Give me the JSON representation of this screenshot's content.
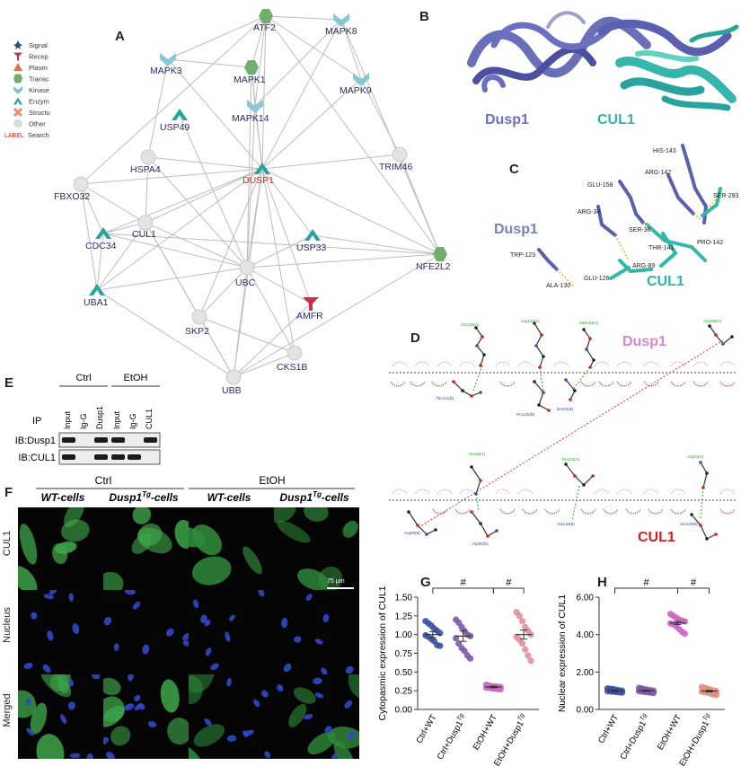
{
  "panelA": {
    "letter": "A",
    "legend": [
      {
        "label": "Signal",
        "color": "#234e7a",
        "icon": "star-icon"
      },
      {
        "label": "Recep",
        "color": "#c8304e",
        "icon": "receptor-icon"
      },
      {
        "label": "Plasm",
        "color": "#e07055",
        "icon": "triangle-icon"
      },
      {
        "label": "Transc",
        "color": "#6fae6f",
        "icon": "hexagon-icon"
      },
      {
        "label": "Kinase",
        "color": "#7fc0d0",
        "icon": "chevron-icon"
      },
      {
        "label": "Enzym",
        "color": "#2aa39e",
        "icon": "arch-icon"
      },
      {
        "label": "Structu",
        "color": "#e88c6c",
        "icon": "cross-icon"
      },
      {
        "label": "Other",
        "color": "#dcdcdc",
        "icon": "circle-icon"
      },
      {
        "label": "Search",
        "color": "#cc2222",
        "icon": "label-icon",
        "prefix": "LABEL"
      }
    ],
    "nodes": [
      {
        "id": "ATF2",
        "label": "ATF2",
        "type": "transc"
      },
      {
        "id": "MAPK8",
        "label": "MAPK8",
        "type": "kinase"
      },
      {
        "id": "MAPK3",
        "label": "MAPK3",
        "type": "kinase"
      },
      {
        "id": "MAPK1",
        "label": "MAPK1",
        "type": "transc"
      },
      {
        "id": "MAPK9",
        "label": "MAPK9",
        "type": "kinase"
      },
      {
        "id": "MAPK14",
        "label": "MAPK14",
        "type": "kinase"
      },
      {
        "id": "USP49",
        "label": "USP49",
        "type": "enzym"
      },
      {
        "id": "HSPA4",
        "label": "HSPA4",
        "type": "other"
      },
      {
        "id": "DUSP1",
        "label": "DUSP1",
        "type": "enzym",
        "highlight": true
      },
      {
        "id": "TRIM46",
        "label": "TRIM46",
        "type": "other"
      },
      {
        "id": "FBXO32",
        "label": "FBXO32",
        "type": "other"
      },
      {
        "id": "CUL1",
        "label": "CUL1",
        "type": "other"
      },
      {
        "id": "CDC34",
        "label": "CDC34",
        "type": "enzym"
      },
      {
        "id": "USP33",
        "label": "USP33",
        "type": "enzym"
      },
      {
        "id": "NFE2L2",
        "label": "NFE2L2",
        "type": "transc"
      },
      {
        "id": "UBC",
        "label": "UBC",
        "type": "other"
      },
      {
        "id": "UBA1",
        "label": "UBA1",
        "type": "enzym"
      },
      {
        "id": "AMFR",
        "label": "AMFR",
        "type": "recep"
      },
      {
        "id": "SKP2",
        "label": "SKP2",
        "type": "other"
      },
      {
        "id": "CKS1B",
        "label": "CKS1B",
        "type": "other"
      },
      {
        "id": "UBB",
        "label": "UBB",
        "type": "other"
      }
    ],
    "edges": [
      [
        "DUSP1",
        "ATF2"
      ],
      [
        "DUSP1",
        "MAPK8"
      ],
      [
        "DUSP1",
        "MAPK3"
      ],
      [
        "DUSP1",
        "MAPK1"
      ],
      [
        "DUSP1",
        "MAPK9"
      ],
      [
        "DUSP1",
        "MAPK14"
      ],
      [
        "DUSP1",
        "HSPA4"
      ],
      [
        "DUSP1",
        "TRIM46"
      ],
      [
        "DUSP1",
        "FBXO32"
      ],
      [
        "DUSP1",
        "CUL1"
      ],
      [
        "DUSP1",
        "CDC34"
      ],
      [
        "DUSP1",
        "UBC"
      ],
      [
        "DUSP1",
        "UBA1"
      ],
      [
        "DUSP1",
        "AMFR"
      ],
      [
        "DUSP1",
        "SKP2"
      ],
      [
        "DUSP1",
        "UBB"
      ],
      [
        "DUSP1",
        "CKS1B"
      ],
      [
        "DUSP1",
        "USP33"
      ],
      [
        "DUSP1",
        "NFE2L2"
      ],
      [
        "ATF2",
        "MAPK8"
      ],
      [
        "ATF2",
        "MAPK3"
      ],
      [
        "ATF2",
        "MAPK1"
      ],
      [
        "ATF2",
        "MAPK9"
      ],
      [
        "ATF2",
        "MAPK14"
      ],
      [
        "ATF2",
        "FBXO32"
      ],
      [
        "ATF2",
        "NFE2L2"
      ],
      [
        "MAPK8",
        "MAPK9"
      ],
      [
        "MAPK8",
        "NFE2L2"
      ],
      [
        "MAPK8",
        "MAPK14"
      ],
      [
        "MAPK3",
        "MAPK1"
      ],
      [
        "MAPK3",
        "HSPA4"
      ],
      [
        "MAPK1",
        "MAPK14"
      ],
      [
        "MAPK9",
        "TRIM46"
      ],
      [
        "HSPA4",
        "CUL1"
      ],
      [
        "FBXO32",
        "CUL1"
      ],
      [
        "FBXO32",
        "CDC34"
      ],
      [
        "FBXO32",
        "UBA1"
      ],
      [
        "CUL1",
        "CDC34"
      ],
      [
        "CUL1",
        "UBC"
      ],
      [
        "CUL1",
        "SKP2"
      ],
      [
        "CUL1",
        "UBA1"
      ],
      [
        "CUL1",
        "UBB"
      ],
      [
        "CDC34",
        "UBA1"
      ],
      [
        "CDC34",
        "UBC"
      ],
      [
        "CDC34",
        "NFE2L2"
      ],
      [
        "UBA1",
        "UBC"
      ],
      [
        "UBA1",
        "UBB"
      ],
      [
        "UBC",
        "USP33"
      ],
      [
        "UBC",
        "UBB"
      ],
      [
        "UBC",
        "AMFR"
      ],
      [
        "UBC",
        "SKP2"
      ],
      [
        "UBC",
        "CKS1B"
      ],
      [
        "UBC",
        "NFE2L2"
      ],
      [
        "USP33",
        "NFE2L2"
      ],
      [
        "AMFR",
        "UBB"
      ],
      [
        "SKP2",
        "CKS1B"
      ],
      [
        "SKP2",
        "UBB"
      ],
      [
        "UBB",
        "CKS1B"
      ],
      [
        "NFE2L2",
        "UBB"
      ],
      [
        "NFE2L2",
        "TRIM46"
      ],
      [
        "MAPK14",
        "UBC"
      ],
      [
        "USP49",
        "UBC"
      ],
      [
        "HSPA4",
        "UBC"
      ],
      [
        "MAPK1",
        "UBC"
      ]
    ]
  },
  "panelB": {
    "letter": "B",
    "label_left": "Dusp1",
    "label_right": "CUL1"
  },
  "panelC": {
    "letter": "C",
    "label_left": "Dusp1",
    "label_right": "CUL1",
    "residues": [
      "HIS-143",
      "ARG-142",
      "SER-293",
      "GLU-158",
      "ARG-34",
      "SER-36",
      "PRO-142",
      "THR-141",
      "TRP-123",
      "ARG-89",
      "GLU-126",
      "ALA-130"
    ]
  },
  "panelD": {
    "letter": "D",
    "top_label": "Dusp1",
    "bottom_label": "CUL1",
    "top_residues": [
      "Gln139(A)",
      "Arg142(A)",
      "Met143(A)",
      "Arg289(A)",
      "Thr141(B)",
      "Pro142(B)",
      "Ile293(B)"
    ],
    "bottom_residues": [
      "Ser36(A)",
      "Trp123(A)",
      "Arg34(A)",
      "Arg89(B)",
      "Ala130(B)",
      "Glu126(B)",
      "Asp90(B)"
    ]
  },
  "panelE": {
    "letter": "E",
    "group_ctrl": "Ctrl",
    "group_etoh": "EtOH",
    "ip_label": "IP",
    "lanes": [
      "Input",
      "Ig-G",
      "Dusp1",
      "Input",
      "Ig-G",
      "CUL1"
    ],
    "blots": [
      "IB:Dusp1",
      "IB:CUL1"
    ]
  },
  "panelF": {
    "letter": "F",
    "group_ctrl": "Ctrl",
    "group_etoh": "EtOH",
    "cols": [
      "WT-cells",
      "Dusp1Tg-cells",
      "WT-cells",
      "Dusp1Tg-cells"
    ],
    "col_base": [
      "WT-cells",
      "Dusp1",
      "WT-cells",
      "Dusp1"
    ],
    "col_sup": [
      "",
      "Tg",
      "",
      "Tg"
    ],
    "col_tail": [
      "",
      "-cells",
      "",
      "-cells"
    ],
    "rows": [
      "CUL1",
      "Nucleus",
      "Merged"
    ],
    "scale_bar": "75 μm"
  },
  "panelG": {
    "letter": "G",
    "chart_data": {
      "type": "scatter",
      "ylabel": "Cytopasmic expression of CUL1",
      "ylim": [
        0,
        1.5
      ],
      "yticks": [
        "0.00",
        "0.25",
        "0.50",
        "0.75",
        "1.00",
        "1.25",
        "1.50"
      ],
      "categories": [
        "Ctrl+WT",
        "Ctrl+Dusp1Tg",
        "EtOH+WT",
        "EtOH+Dusp1Tg"
      ],
      "cat_base": [
        "Ctrl+WT",
        "Ctrl+Dusp1",
        "EtOH+WT",
        "EtOH+Dusp1"
      ],
      "cat_sup": [
        "",
        "Tg",
        "",
        "Tg"
      ],
      "colors": [
        "#3d4fa0",
        "#7b5aa6",
        "#c868c0",
        "#e08fa0"
      ],
      "means": [
        1.0,
        0.98,
        0.3,
        1.0
      ],
      "sems": [
        0.04,
        0.07,
        0.01,
        0.06
      ],
      "series": [
        {
          "values": [
            1.18,
            1.15,
            1.12,
            1.08,
            1.05,
            1.02,
            0.99,
            0.97,
            0.94,
            0.91,
            0.86,
            0.85
          ]
        },
        {
          "values": [
            1.2,
            1.16,
            1.1,
            1.05,
            1.0,
            0.98,
            0.95,
            0.88,
            0.82,
            0.78,
            0.72,
            0.68
          ]
        },
        {
          "values": [
            0.33,
            0.32,
            0.31,
            0.31,
            0.3,
            0.3,
            0.29,
            0.29,
            0.28,
            0.28,
            0.27,
            0.27
          ]
        },
        {
          "values": [
            1.3,
            1.25,
            1.18,
            1.1,
            1.05,
            1.0,
            0.97,
            0.93,
            0.88,
            0.8,
            0.72,
            0.65
          ]
        }
      ],
      "sig": [
        "#",
        "#"
      ]
    }
  },
  "panelH": {
    "letter": "H",
    "chart_data": {
      "type": "scatter",
      "ylabel": "Nuclear expression of CUL1",
      "ylim": [
        0,
        6
      ],
      "yticks": [
        "0.00",
        "2.00",
        "4.00",
        "6.00"
      ],
      "categories": [
        "Ctrl+WT",
        "Ctrl+Dusp1Tg",
        "EtOH+WT",
        "EtOH+Dusp1Tg"
      ],
      "cat_base": [
        "Ctrl+WT",
        "Ctrl+Dusp1",
        "EtOH+WT",
        "EtOH+Dusp1"
      ],
      "cat_sup": [
        "",
        "Tg",
        "",
        "Tg"
      ],
      "colors": [
        "#3d4fa0",
        "#7b5aa6",
        "#c868c0",
        "#e08f80"
      ],
      "means": [
        1.0,
        1.0,
        4.62,
        0.98
      ],
      "sems": [
        0.03,
        0.03,
        0.08,
        0.04
      ],
      "series": [
        {
          "values": [
            1.12,
            1.1,
            1.08,
            1.05,
            1.02,
            1.0,
            0.98,
            0.96,
            0.95,
            0.93,
            0.92,
            0.9
          ]
        },
        {
          "values": [
            1.15,
            1.12,
            1.08,
            1.05,
            1.02,
            1.0,
            0.98,
            0.96,
            0.94,
            0.92,
            0.9,
            0.88
          ]
        },
        {
          "values": [
            5.1,
            5.0,
            4.9,
            4.8,
            4.75,
            4.7,
            4.6,
            4.55,
            4.45,
            4.3,
            4.15,
            4.05
          ]
        },
        {
          "values": [
            1.2,
            1.15,
            1.1,
            1.05,
            1.0,
            0.98,
            0.95,
            0.92,
            0.9,
            0.85,
            0.8,
            0.78
          ]
        }
      ],
      "sig": [
        "#",
        "#"
      ]
    }
  }
}
